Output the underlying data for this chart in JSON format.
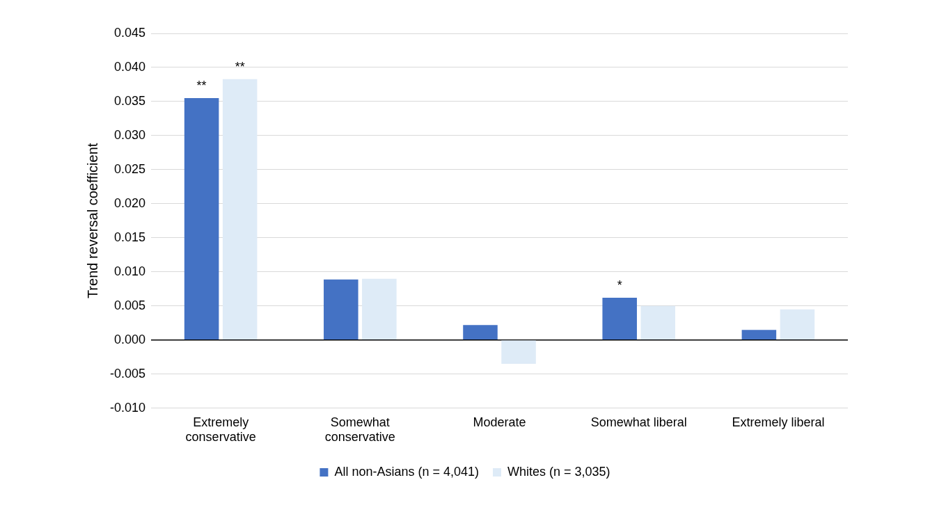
{
  "chart_data": {
    "type": "bar",
    "ylabel": "Trend reversal coefficient",
    "categories": [
      "Extremely conservative",
      "Somewhat conservative",
      "Moderate",
      "Somewhat liberal",
      "Extremely liberal"
    ],
    "series": [
      {
        "name": "All non-Asians (n = 4,041)",
        "color": "#4472c4",
        "values": [
          0.0355,
          0.0089,
          0.0022,
          0.0062,
          0.0015
        ]
      },
      {
        "name": "Whites (n = 3,035)",
        "color": "#deebf7",
        "values": [
          0.0383,
          0.009,
          -0.0035,
          0.005,
          0.0045
        ]
      }
    ],
    "ylim": [
      -0.01,
      0.045
    ],
    "yticks": [
      {
        "value": -0.01,
        "label": "-0.010"
      },
      {
        "value": -0.005,
        "label": "-0.005"
      },
      {
        "value": 0,
        "label": "0.000"
      },
      {
        "value": 0.005,
        "label": "0.005"
      },
      {
        "value": 0.01,
        "label": "0.010"
      },
      {
        "value": 0.015,
        "label": "0.015"
      },
      {
        "value": 0.02,
        "label": "0.020"
      },
      {
        "value": 0.025,
        "label": "0.025"
      },
      {
        "value": 0.03,
        "label": "0.030"
      },
      {
        "value": 0.035,
        "label": "0.035"
      },
      {
        "value": 0.04,
        "label": "0.040"
      },
      {
        "value": 0.045,
        "label": "0.045"
      }
    ],
    "grid": "y",
    "legend": "bottom",
    "annotations": [
      {
        "text": "**",
        "x": "Extremely conservative",
        "y": 0.0355
      },
      {
        "text": "**",
        "x": "Extremely conservative",
        "y": 0.0383
      },
      {
        "text": "*",
        "x": "Somewhat liberal",
        "y": 0.0062
      }
    ]
  }
}
